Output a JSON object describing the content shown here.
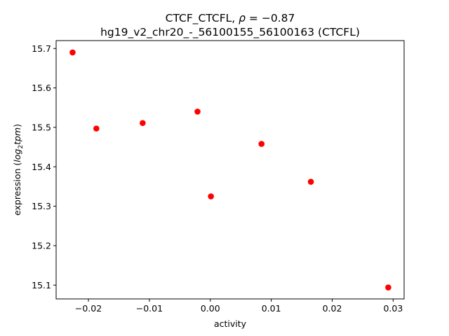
{
  "chart_data": {
    "type": "scatter",
    "title_line1_prefix": "CTCF_CTCFL, ",
    "title_rho_symbol": "ρ",
    "title_rho_value": " = −0.87",
    "title_line2": "hg19_v2_chr20_-_56100155_56100163 (CTCFL)",
    "xlabel": "activity",
    "ylabel_prefix": "expression (",
    "ylabel_log": "log",
    "ylabel_sub": "2",
    "ylabel_tpm": "tpm",
    "ylabel_suffix": ")",
    "xlim": [
      -0.0253,
      0.0318
    ],
    "ylim": [
      15.065,
      15.72
    ],
    "xticks": [
      -0.02,
      -0.01,
      0.0,
      0.01,
      0.02,
      0.03
    ],
    "xtick_labels": [
      "−0.02",
      "−0.01",
      "0.00",
      "0.01",
      "0.02",
      "0.03"
    ],
    "yticks": [
      15.1,
      15.2,
      15.3,
      15.4,
      15.5,
      15.6,
      15.7
    ],
    "ytick_labels": [
      "15.1",
      "15.2",
      "15.3",
      "15.4",
      "15.5",
      "15.6",
      "15.7"
    ],
    "marker_color": "#ff0000",
    "grid": false,
    "points": [
      {
        "x": -0.0226,
        "y": 15.69
      },
      {
        "x": -0.0187,
        "y": 15.497
      },
      {
        "x": -0.0111,
        "y": 15.511
      },
      {
        "x": -0.0021,
        "y": 15.54
      },
      {
        "x": 0.0001,
        "y": 15.325
      },
      {
        "x": 0.0084,
        "y": 15.458
      },
      {
        "x": 0.0165,
        "y": 15.362
      },
      {
        "x": 0.0292,
        "y": 15.094
      }
    ]
  }
}
